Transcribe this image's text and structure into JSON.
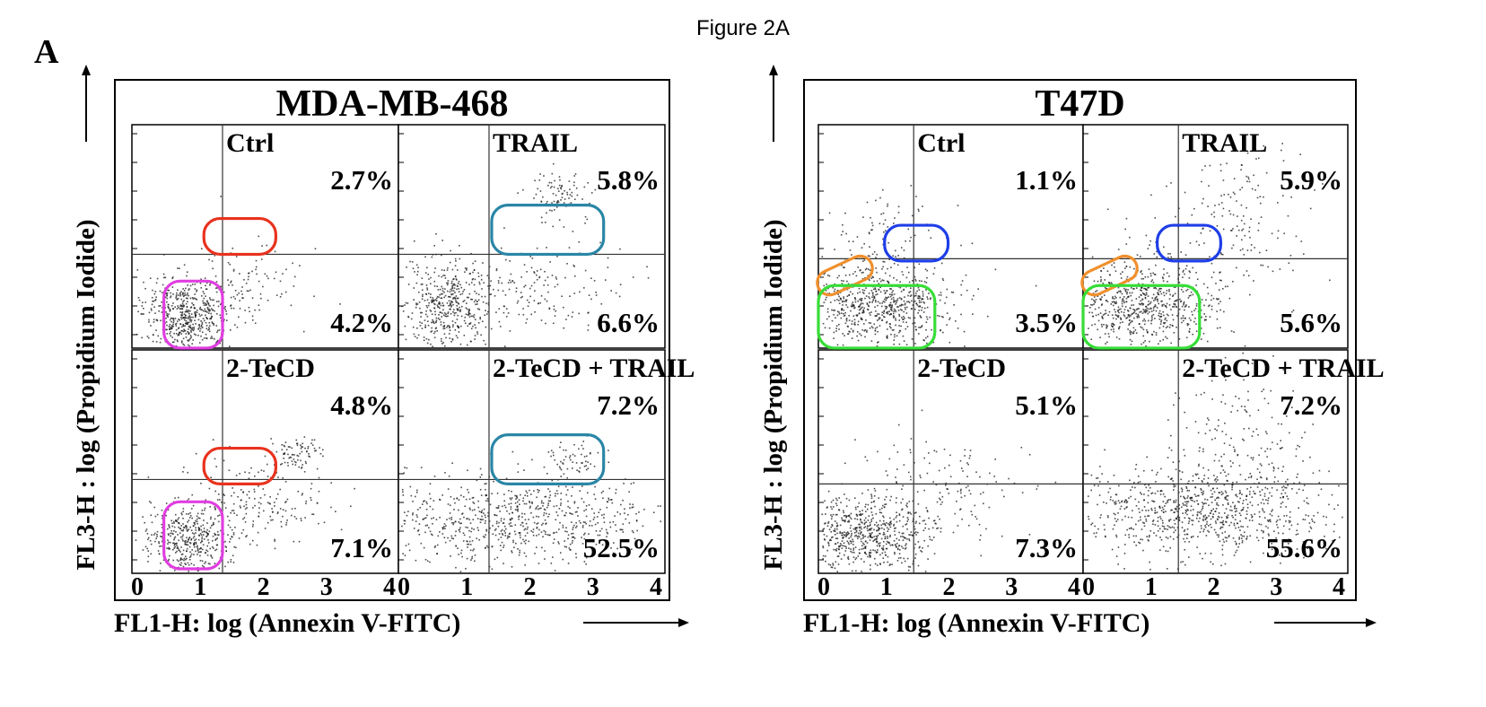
{
  "figure": {
    "title": "Figure 2A",
    "panel_letter": "A"
  },
  "chart_data": [
    {
      "type": "scatter",
      "title": "MDA-MB-468",
      "xlabel": "FL1-H: log (Annexin V-FITC)",
      "ylabel": "FL3-H : log (Propidium Iodide)",
      "xlim": [
        0,
        4
      ],
      "x_ticks": [
        "0",
        "1",
        "2",
        "3",
        "4"
      ],
      "grid": false,
      "subplots": [
        {
          "label": "Ctrl",
          "upper_right_pct": "2.7%",
          "lower_right_pct": "4.2%",
          "ur_value": 2.7,
          "lr_value": 4.2
        },
        {
          "label": "TRAIL",
          "upper_right_pct": "5.8%",
          "lower_right_pct": "6.6%",
          "ur_value": 5.8,
          "lr_value": 6.6
        },
        {
          "label": "2-TeCD",
          "upper_right_pct": "4.8%",
          "lower_right_pct": "7.1%",
          "ur_value": 4.8,
          "lr_value": 7.1
        },
        {
          "label": "2-TeCD + TRAIL",
          "upper_right_pct": "7.2%",
          "lower_right_pct": "52.5%",
          "ur_value": 7.2,
          "lr_value": 52.5
        }
      ]
    },
    {
      "type": "scatter",
      "title": "T47D",
      "xlabel": "FL1-H: log (Annexin V-FITC)",
      "ylabel": "FL3-H : log (Propidium Iodide)",
      "xlim": [
        0,
        4
      ],
      "x_ticks": [
        "0",
        "1",
        "2",
        "3",
        "4"
      ],
      "grid": false,
      "subplots": [
        {
          "label": "Ctrl",
          "upper_right_pct": "1.1%",
          "lower_right_pct": "3.5%",
          "ur_value": 1.1,
          "lr_value": 3.5
        },
        {
          "label": "TRAIL",
          "upper_right_pct": "5.9%",
          "lower_right_pct": "5.6%",
          "ur_value": 5.9,
          "lr_value": 5.6
        },
        {
          "label": "2-TeCD",
          "upper_right_pct": "5.1%",
          "lower_right_pct": "7.3%",
          "ur_value": 5.1,
          "lr_value": 7.3
        },
        {
          "label": "2-TeCD + TRAIL",
          "upper_right_pct": "7.2%",
          "lower_right_pct": "55.6%",
          "ur_value": 7.2,
          "lr_value": 55.6
        }
      ]
    }
  ],
  "highlight_colors": {
    "red": "#e8321e",
    "magenta": "#e03ee0",
    "teal": "#2a86a6",
    "blue": "#1e3ee8",
    "orange": "#f0902c",
    "green": "#37dd37"
  }
}
